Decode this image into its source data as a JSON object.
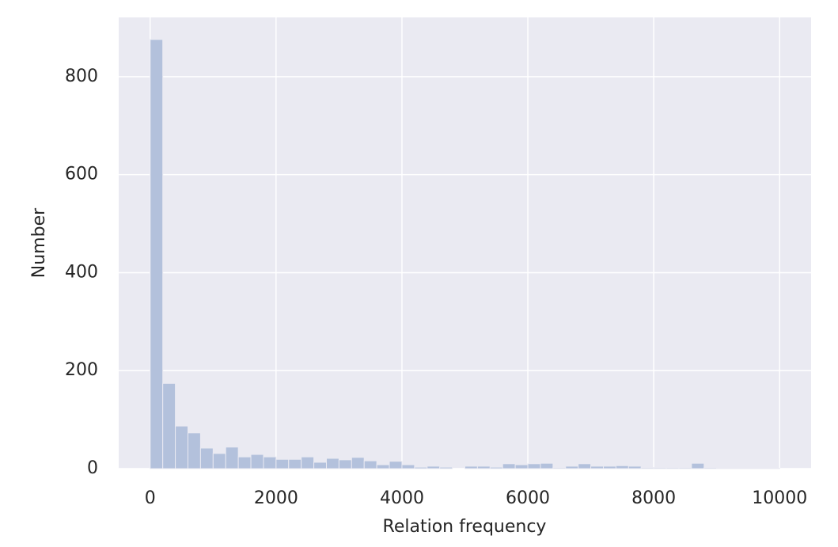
{
  "chart_data": {
    "type": "histogram",
    "x_label": "Relation frequency",
    "y_label": "Number",
    "bins": [
      0,
      200,
      400,
      600,
      800,
      1000,
      1200,
      1400,
      1600,
      1800,
      2000,
      2200,
      2400,
      2600,
      2800,
      3000,
      3200,
      3400,
      3600,
      3800,
      4000,
      4200,
      4400,
      4600,
      4800,
      5000,
      5200,
      5400,
      5600,
      5800,
      6000,
      6200,
      6400,
      6600,
      6800,
      7000,
      7200,
      7400,
      7600,
      7800,
      8000,
      8200,
      8400,
      8600,
      8800,
      9000,
      9200,
      9400,
      9600,
      9800,
      10000
    ],
    "values": [
      876,
      174,
      87,
      73,
      42,
      31,
      44,
      24,
      29,
      24,
      19,
      19,
      24,
      13,
      21,
      18,
      23,
      16,
      8,
      15,
      8,
      3,
      5,
      3,
      0,
      5,
      5,
      3,
      10,
      8,
      10,
      11,
      2,
      5,
      10,
      5,
      5,
      6,
      5,
      2,
      2,
      2,
      2,
      11,
      2,
      1,
      1,
      1,
      1,
      1
    ],
    "color": "#b3c1dc",
    "xlim": [
      -500,
      10500
    ],
    "ylim": [
      0,
      921
    ],
    "xticks": [
      0,
      2000,
      4000,
      6000,
      8000,
      10000
    ],
    "yticks": [
      0,
      200,
      400,
      600,
      800
    ],
    "grid": true
  }
}
